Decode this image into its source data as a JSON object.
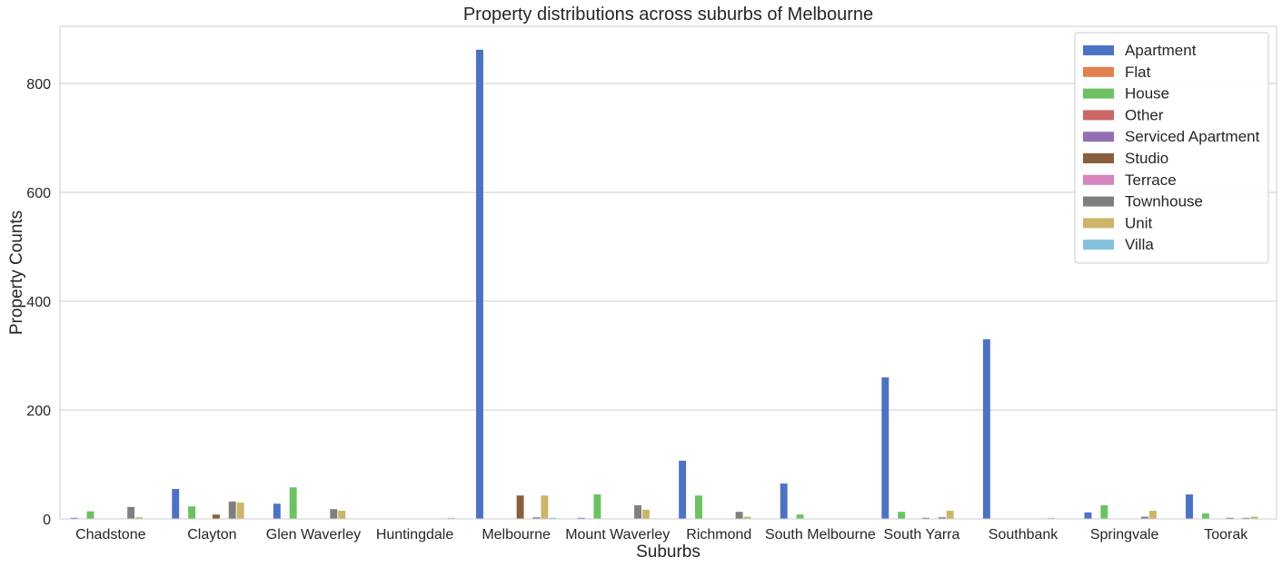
{
  "chart_data": {
    "type": "bar",
    "title": "Property distributions across suburbs of Melbourne",
    "xlabel": "Suburbs",
    "ylabel": "Property Counts",
    "ylim": [
      0,
      905
    ],
    "yticks": [
      0,
      200,
      400,
      600,
      800
    ],
    "grid": "horizontal",
    "legend_position": "top-right",
    "categories": [
      "Chadstone",
      "Clayton",
      "Glen Waverley",
      "Huntingdale",
      "Melbourne",
      "Mount Waverley",
      "Richmond",
      "South Melbourne",
      "South Yarra",
      "Southbank",
      "Springvale",
      "Toorak"
    ],
    "series": [
      {
        "name": "Apartment",
        "color": "#4c72c4",
        "values": [
          2,
          55,
          28,
          0,
          862,
          2,
          107,
          65,
          260,
          330,
          12,
          45
        ]
      },
      {
        "name": "Flat",
        "color": "#e1814f",
        "values": [
          0,
          0,
          0,
          0,
          0,
          0,
          0,
          0,
          0,
          0,
          0,
          0
        ]
      },
      {
        "name": "House",
        "color": "#6cc262",
        "values": [
          14,
          23,
          58,
          0,
          0,
          45,
          43,
          8,
          13,
          0,
          25,
          10
        ]
      },
      {
        "name": "Other",
        "color": "#cc6566",
        "values": [
          0,
          0,
          0,
          0,
          0,
          0,
          0,
          0,
          0,
          0,
          0,
          0
        ]
      },
      {
        "name": "Serviced Apartment",
        "color": "#9370b4",
        "values": [
          0,
          0,
          0,
          0,
          0,
          0,
          0,
          0,
          0,
          0,
          0,
          0
        ]
      },
      {
        "name": "Studio",
        "color": "#8a5e3c",
        "values": [
          0,
          8,
          0,
          0,
          43,
          0,
          0,
          0,
          2,
          0,
          0,
          2
        ]
      },
      {
        "name": "Terrace",
        "color": "#d684bd",
        "values": [
          0,
          0,
          0,
          0,
          0,
          0,
          0,
          0,
          0,
          0,
          0,
          0
        ]
      },
      {
        "name": "Townhouse",
        "color": "#7f7f7f",
        "values": [
          22,
          32,
          18,
          0,
          3,
          25,
          13,
          0,
          3,
          0,
          4,
          2
        ]
      },
      {
        "name": "Unit",
        "color": "#ccb56a",
        "values": [
          3,
          30,
          15,
          0,
          43,
          17,
          4,
          0,
          15,
          2,
          15,
          4
        ]
      },
      {
        "name": "Villa",
        "color": "#84c1dc",
        "values": [
          0,
          0,
          0,
          2,
          2,
          0,
          0,
          0,
          0,
          0,
          0,
          0
        ]
      }
    ]
  }
}
